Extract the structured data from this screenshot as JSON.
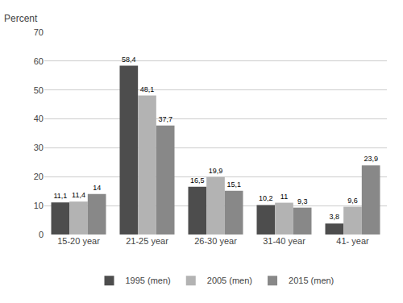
{
  "chart_data": {
    "type": "bar",
    "ylabel": "Percent",
    "categories": [
      "15-20 year",
      "21-25 year",
      "26-30 year",
      "31-40 year",
      "41- year"
    ],
    "series": [
      {
        "name": "1995 (men)",
        "color": "#4d4d4d",
        "values": [
          11.1,
          58.4,
          16.5,
          10.2,
          3.8
        ],
        "value_labels": [
          "11,1",
          "58,4",
          "16,5",
          "10,2",
          "3,8"
        ]
      },
      {
        "name": "2005 (men)",
        "color": "#b3b3b3",
        "values": [
          11.4,
          48.1,
          19.9,
          11.0,
          9.6
        ],
        "value_labels": [
          "11,4",
          "48,1",
          "19,9",
          "11",
          "9,6"
        ]
      },
      {
        "name": "2015 (men)",
        "color": "#888888",
        "values": [
          14.0,
          37.7,
          15.1,
          9.3,
          23.9
        ],
        "value_labels": [
          "14",
          "37,7",
          "15,1",
          "9,3",
          "23,9"
        ]
      }
    ],
    "ylim": [
      0,
      70
    ],
    "yticks": [
      0,
      10,
      20,
      30,
      40,
      50,
      60,
      70
    ],
    "grid": true,
    "legend": "bottom",
    "data_labels": true
  }
}
